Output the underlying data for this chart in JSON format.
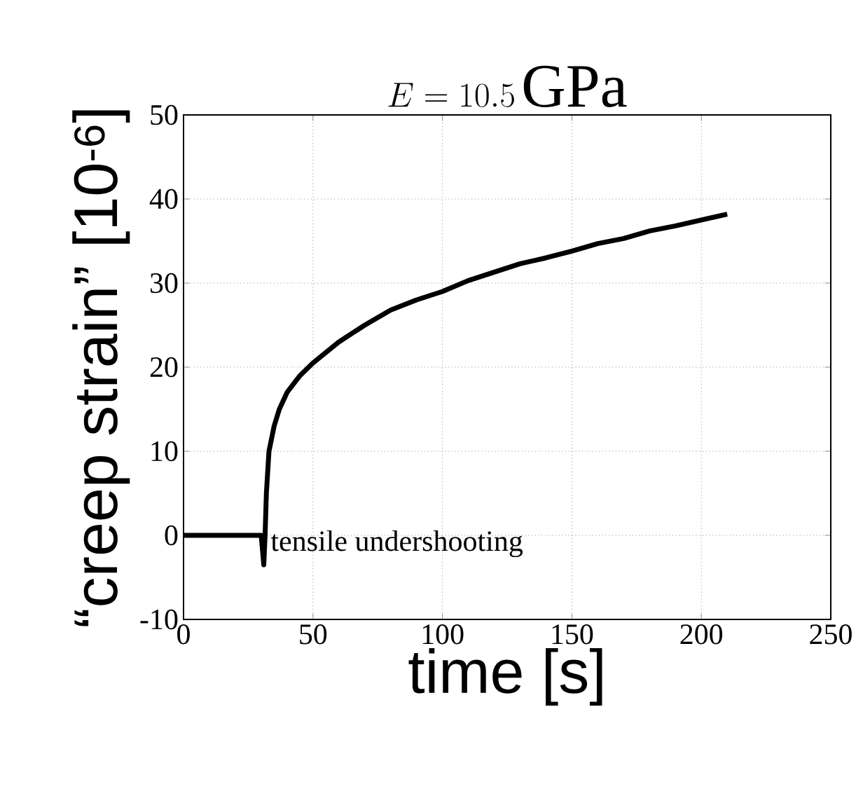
{
  "chart_data": {
    "type": "line",
    "title": "E = 10.5\\,\\mathrm{GPa}",
    "xlabel": "time [s]",
    "ylabel": "“creep strain” [10$^{-6}$]",
    "x": [
      0,
      10,
      20,
      30,
      31,
      31.5,
      32,
      33,
      35,
      37,
      40,
      45,
      50,
      60,
      70,
      80,
      90,
      100,
      110,
      120,
      130,
      140,
      150,
      160,
      170,
      180,
      190,
      200,
      210
    ],
    "series": [
      {
        "color": "#000000",
        "values": [
          0,
          0,
          0,
          0,
          -3.5,
          0,
          5,
          10,
          13,
          15,
          17,
          19,
          20.5,
          23,
          25,
          26.8,
          28,
          29,
          30.3,
          31.3,
          32.3,
          33,
          33.8,
          34.7,
          35.3,
          36.2,
          36.8,
          37.5,
          38.2
        ]
      }
    ],
    "xlim": [
      0,
      250
    ],
    "ylim": [
      -10,
      50
    ],
    "xticks": [
      0,
      50,
      100,
      150,
      200,
      250
    ],
    "yticks": [
      -10,
      0,
      10,
      20,
      30,
      40,
      50
    ],
    "grid": true,
    "line_style": "solid",
    "marker": "none",
    "annotations": [
      {
        "text": "tensile undershooting",
        "x": 33,
        "y": -1
      }
    ]
  }
}
